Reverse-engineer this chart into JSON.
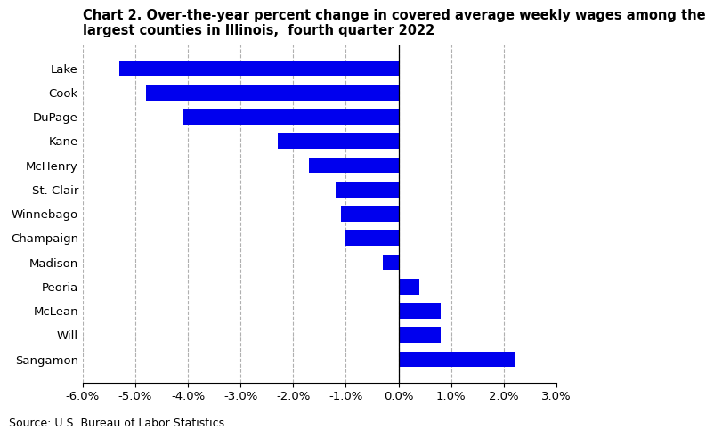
{
  "title_line1": "Chart 2. Over-the-year percent change in covered average weekly wages among the",
  "title_line2": "largest counties in Illinois,  fourth quarter 2022",
  "counties": [
    "Lake",
    "Cook",
    "DuPage",
    "Kane",
    "McHenry",
    "St. Clair",
    "Winnebago",
    "Champaign",
    "Madison",
    "Peoria",
    "McLean",
    "Will",
    "Sangamon"
  ],
  "values": [
    -5.3,
    -4.8,
    -4.1,
    -2.3,
    -1.7,
    -1.2,
    -1.1,
    -1.0,
    -0.3,
    0.4,
    0.8,
    0.8,
    2.2
  ],
  "bar_color": "#0000ee",
  "xlim": [
    -6.0,
    3.0
  ],
  "xticks": [
    -6.0,
    -5.0,
    -4.0,
    -3.0,
    -2.0,
    -1.0,
    0.0,
    1.0,
    2.0,
    3.0
  ],
  "source": "Source: U.S. Bureau of Labor Statistics.",
  "grid_color": "#b0b0b0",
  "background_color": "#ffffff",
  "title_fontsize": 10.5,
  "tick_fontsize": 9.5,
  "source_fontsize": 9
}
